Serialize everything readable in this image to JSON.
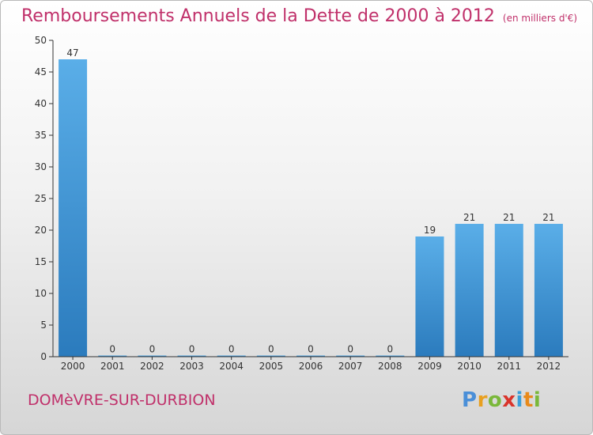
{
  "title": "Remboursements Annuels de la Dette de 2000 à 2012",
  "subtitle": "(en milliers d'€)",
  "commune": "DOMèVRE-SUR-DURBION",
  "logo": {
    "letters": [
      "P",
      "r",
      "o",
      "x",
      "i",
      "t",
      "i"
    ],
    "colors": [
      "#4a8fd8",
      "#e8a020",
      "#7ab83a",
      "#d9342b",
      "#3b9fd9",
      "#e88a1a",
      "#7ab83a"
    ]
  },
  "chart_data": {
    "type": "bar",
    "categories": [
      "2000",
      "2001",
      "2002",
      "2003",
      "2004",
      "2005",
      "2006",
      "2007",
      "2008",
      "2009",
      "2010",
      "2011",
      "2012"
    ],
    "values": [
      47,
      0,
      0,
      0,
      0,
      0,
      0,
      0,
      0,
      19,
      21,
      21,
      21
    ],
    "data_labels": [
      "47",
      "0",
      "0",
      "0",
      "0",
      "0",
      "0",
      "0",
      "0",
      "19",
      "21",
      "21",
      "21"
    ],
    "ylim": [
      0,
      50
    ],
    "yticks": [
      0,
      5,
      10,
      15,
      20,
      25,
      30,
      35,
      40,
      45,
      50
    ],
    "bar_color_top": "#5aaee8",
    "bar_color_bottom": "#2b7bbd",
    "grid": false
  }
}
